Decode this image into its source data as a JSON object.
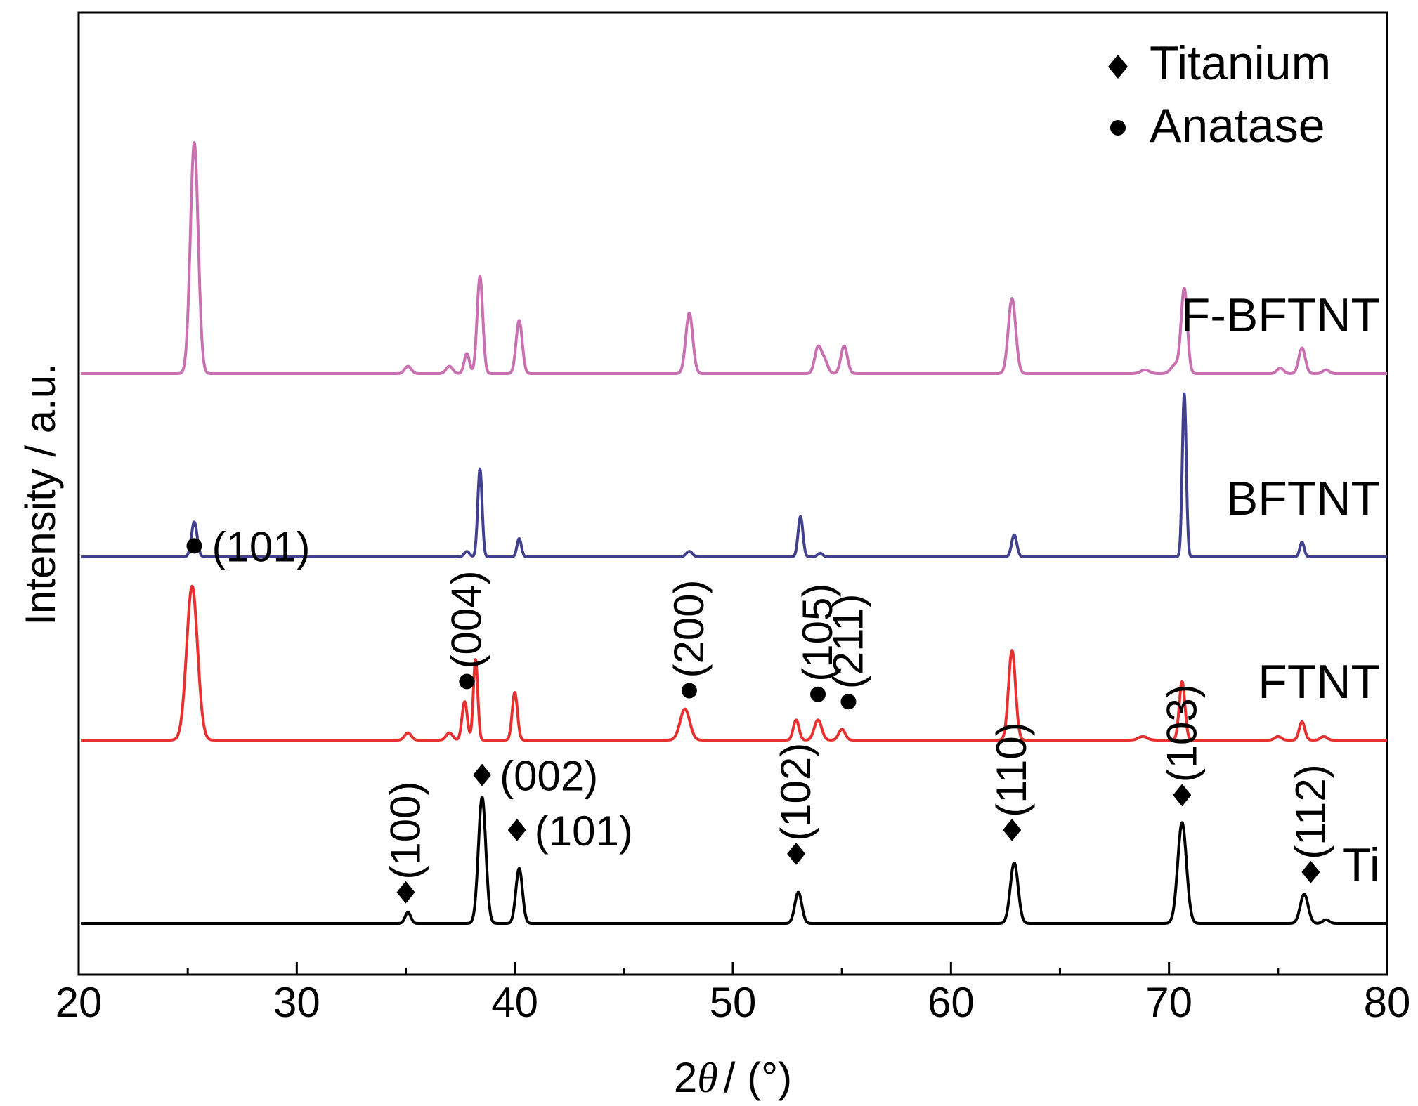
{
  "chart_data": {
    "type": "line",
    "xlabel_prefix": "2",
    "xlabel_theta": "θ",
    "xlabel_suffix": "/ (°)",
    "ylabel": "Intensity / a.u.",
    "xlim": [
      20,
      80
    ],
    "x_ticks": [
      20,
      30,
      40,
      50,
      60,
      70,
      80
    ],
    "x_minor_ticks": [
      25,
      35,
      45,
      55,
      65,
      75
    ],
    "legend": [
      {
        "symbol": "diamond",
        "label": "Titanium"
      },
      {
        "symbol": "dot",
        "label": "Anatase"
      }
    ],
    "legend_position": "top-right",
    "series": [
      {
        "name": "F-BFTNT",
        "color": "#c870b0",
        "baseline": 2.0,
        "peaks": [
          [
            25.3,
            1.26,
            0.18
          ],
          [
            35.1,
            0.04,
            0.15
          ],
          [
            37.0,
            0.04,
            0.15
          ],
          [
            37.8,
            0.11,
            0.12
          ],
          [
            38.4,
            0.53,
            0.13
          ],
          [
            40.2,
            0.29,
            0.14
          ],
          [
            48.0,
            0.33,
            0.16
          ],
          [
            53.9,
            0.14,
            0.15
          ],
          [
            54.2,
            0.07,
            0.15
          ],
          [
            55.1,
            0.15,
            0.15
          ],
          [
            62.8,
            0.41,
            0.17
          ],
          [
            68.9,
            0.02,
            0.2
          ],
          [
            70.3,
            0.05,
            0.2
          ],
          [
            70.7,
            0.46,
            0.14
          ],
          [
            75.1,
            0.03,
            0.15
          ],
          [
            76.1,
            0.14,
            0.15
          ],
          [
            77.2,
            0.02,
            0.15
          ]
        ]
      },
      {
        "name": "BFTNT",
        "color": "#40408f",
        "baseline": 1.0,
        "peaks": [
          [
            25.3,
            0.19,
            0.13
          ],
          [
            37.8,
            0.03,
            0.12
          ],
          [
            38.4,
            0.48,
            0.1
          ],
          [
            40.2,
            0.1,
            0.1
          ],
          [
            48.0,
            0.03,
            0.14
          ],
          [
            53.1,
            0.22,
            0.11
          ],
          [
            54.0,
            0.02,
            0.12
          ],
          [
            62.9,
            0.12,
            0.12
          ],
          [
            70.7,
            0.89,
            0.09
          ],
          [
            76.1,
            0.08,
            0.1
          ]
        ]
      },
      {
        "name": "FTNT",
        "color": "#e83030",
        "baseline": 0.0,
        "peaks": [
          [
            25.2,
            0.84,
            0.25
          ],
          [
            35.1,
            0.04,
            0.15
          ],
          [
            37.0,
            0.04,
            0.15
          ],
          [
            37.7,
            0.21,
            0.12
          ],
          [
            38.2,
            0.44,
            0.1
          ],
          [
            40.0,
            0.26,
            0.12
          ],
          [
            47.8,
            0.17,
            0.22
          ],
          [
            52.9,
            0.11,
            0.13
          ],
          [
            53.9,
            0.11,
            0.17
          ],
          [
            55.0,
            0.06,
            0.15
          ],
          [
            62.8,
            0.49,
            0.16
          ],
          [
            68.8,
            0.02,
            0.2
          ],
          [
            70.6,
            0.32,
            0.13
          ],
          [
            75.0,
            0.02,
            0.15
          ],
          [
            76.1,
            0.1,
            0.13
          ],
          [
            77.1,
            0.02,
            0.15
          ]
        ]
      },
      {
        "name": "Ti",
        "color": "#000000",
        "baseline": -1.0,
        "peaks": [
          [
            35.1,
            0.06,
            0.13
          ],
          [
            38.5,
            0.69,
            0.17
          ],
          [
            40.2,
            0.3,
            0.15
          ],
          [
            53.0,
            0.17,
            0.16
          ],
          [
            62.9,
            0.33,
            0.18
          ],
          [
            70.6,
            0.55,
            0.2
          ],
          [
            76.2,
            0.16,
            0.18
          ],
          [
            77.2,
            0.02,
            0.15
          ]
        ]
      }
    ],
    "annotations": [
      {
        "text": "(101)",
        "marker": "dot",
        "x": 25.3,
        "level": 1.06,
        "rotated": false
      },
      {
        "text": "(004)",
        "marker": "dot",
        "x": 37.8,
        "level": 0.32,
        "rotated": true
      },
      {
        "text": "(200)",
        "marker": "dot",
        "x": 48.0,
        "level": 0.27,
        "rotated": true
      },
      {
        "text": "(105)",
        "marker": "dot",
        "x": 53.9,
        "level": 0.25,
        "rotated": true
      },
      {
        "text": "(211)",
        "marker": "dot",
        "x": 55.3,
        "level": 0.21,
        "rotated": true
      },
      {
        "text": "(100)",
        "marker": "diamond",
        "x": 35.0,
        "level": -0.83,
        "rotated": true
      },
      {
        "text": "(002)",
        "marker": "diamond",
        "x": 38.5,
        "level": -0.19,
        "rotated": false
      },
      {
        "text": "(101)",
        "marker": "diamond",
        "x": 40.1,
        "level": -0.49,
        "rotated": false
      },
      {
        "text": "(102)",
        "marker": "diamond",
        "x": 52.9,
        "level": -0.62,
        "rotated": true
      },
      {
        "text": "(110)",
        "marker": "diamond",
        "x": 62.8,
        "level": -0.49,
        "rotated": true
      },
      {
        "text": "(103)",
        "marker": "diamond",
        "x": 70.6,
        "level": -0.3,
        "rotated": true
      },
      {
        "text": "(112)",
        "marker": "diamond",
        "x": 76.5,
        "level": -0.72,
        "rotated": true
      }
    ]
  }
}
